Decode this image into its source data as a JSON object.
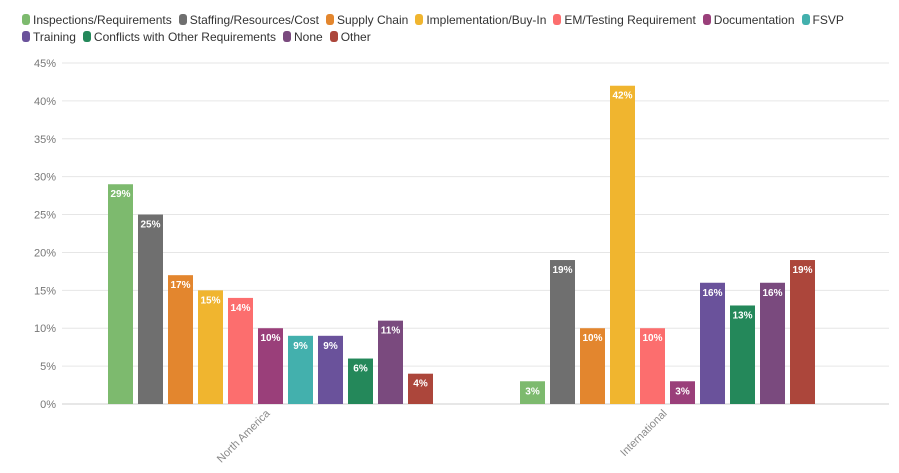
{
  "chart_data": {
    "type": "bar",
    "categories": [
      "North America",
      "International"
    ],
    "ylim": [
      0,
      45
    ],
    "y_ticks": [
      "0%",
      "5%",
      "10%",
      "15%",
      "20%",
      "25%",
      "30%",
      "35%",
      "40%",
      "45%"
    ],
    "y_unit": "%",
    "grid": true,
    "legend_position": "top",
    "series": [
      {
        "name": "Inspections/Requirements",
        "color": "#7dba6e",
        "values": [
          29,
          3
        ]
      },
      {
        "name": "Staffing/Resources/Cost",
        "color": "#6f6f6f",
        "values": [
          25,
          19
        ]
      },
      {
        "name": "Supply Chain",
        "color": "#e3862e",
        "values": [
          17,
          10
        ]
      },
      {
        "name": "Implementation/Buy-In",
        "color": "#f0b52f",
        "values": [
          15,
          42
        ]
      },
      {
        "name": "EM/Testing Requirement",
        "color": "#fc6e6e",
        "values": [
          14,
          10
        ]
      },
      {
        "name": "Documentation",
        "color": "#9a3f7a",
        "values": [
          10,
          3
        ]
      },
      {
        "name": "FSVP",
        "color": "#43b0ad",
        "values": [
          9,
          null
        ]
      },
      {
        "name": "Training",
        "color": "#6a529b",
        "values": [
          9,
          16
        ]
      },
      {
        "name": "Conflicts with Other Requirements",
        "color": "#24885a",
        "values": [
          6,
          13
        ]
      },
      {
        "name": "None",
        "color": "#7a4a7e",
        "values": [
          11,
          16
        ]
      },
      {
        "name": "Other",
        "color": "#ac463b",
        "values": [
          4,
          19
        ]
      }
    ]
  }
}
